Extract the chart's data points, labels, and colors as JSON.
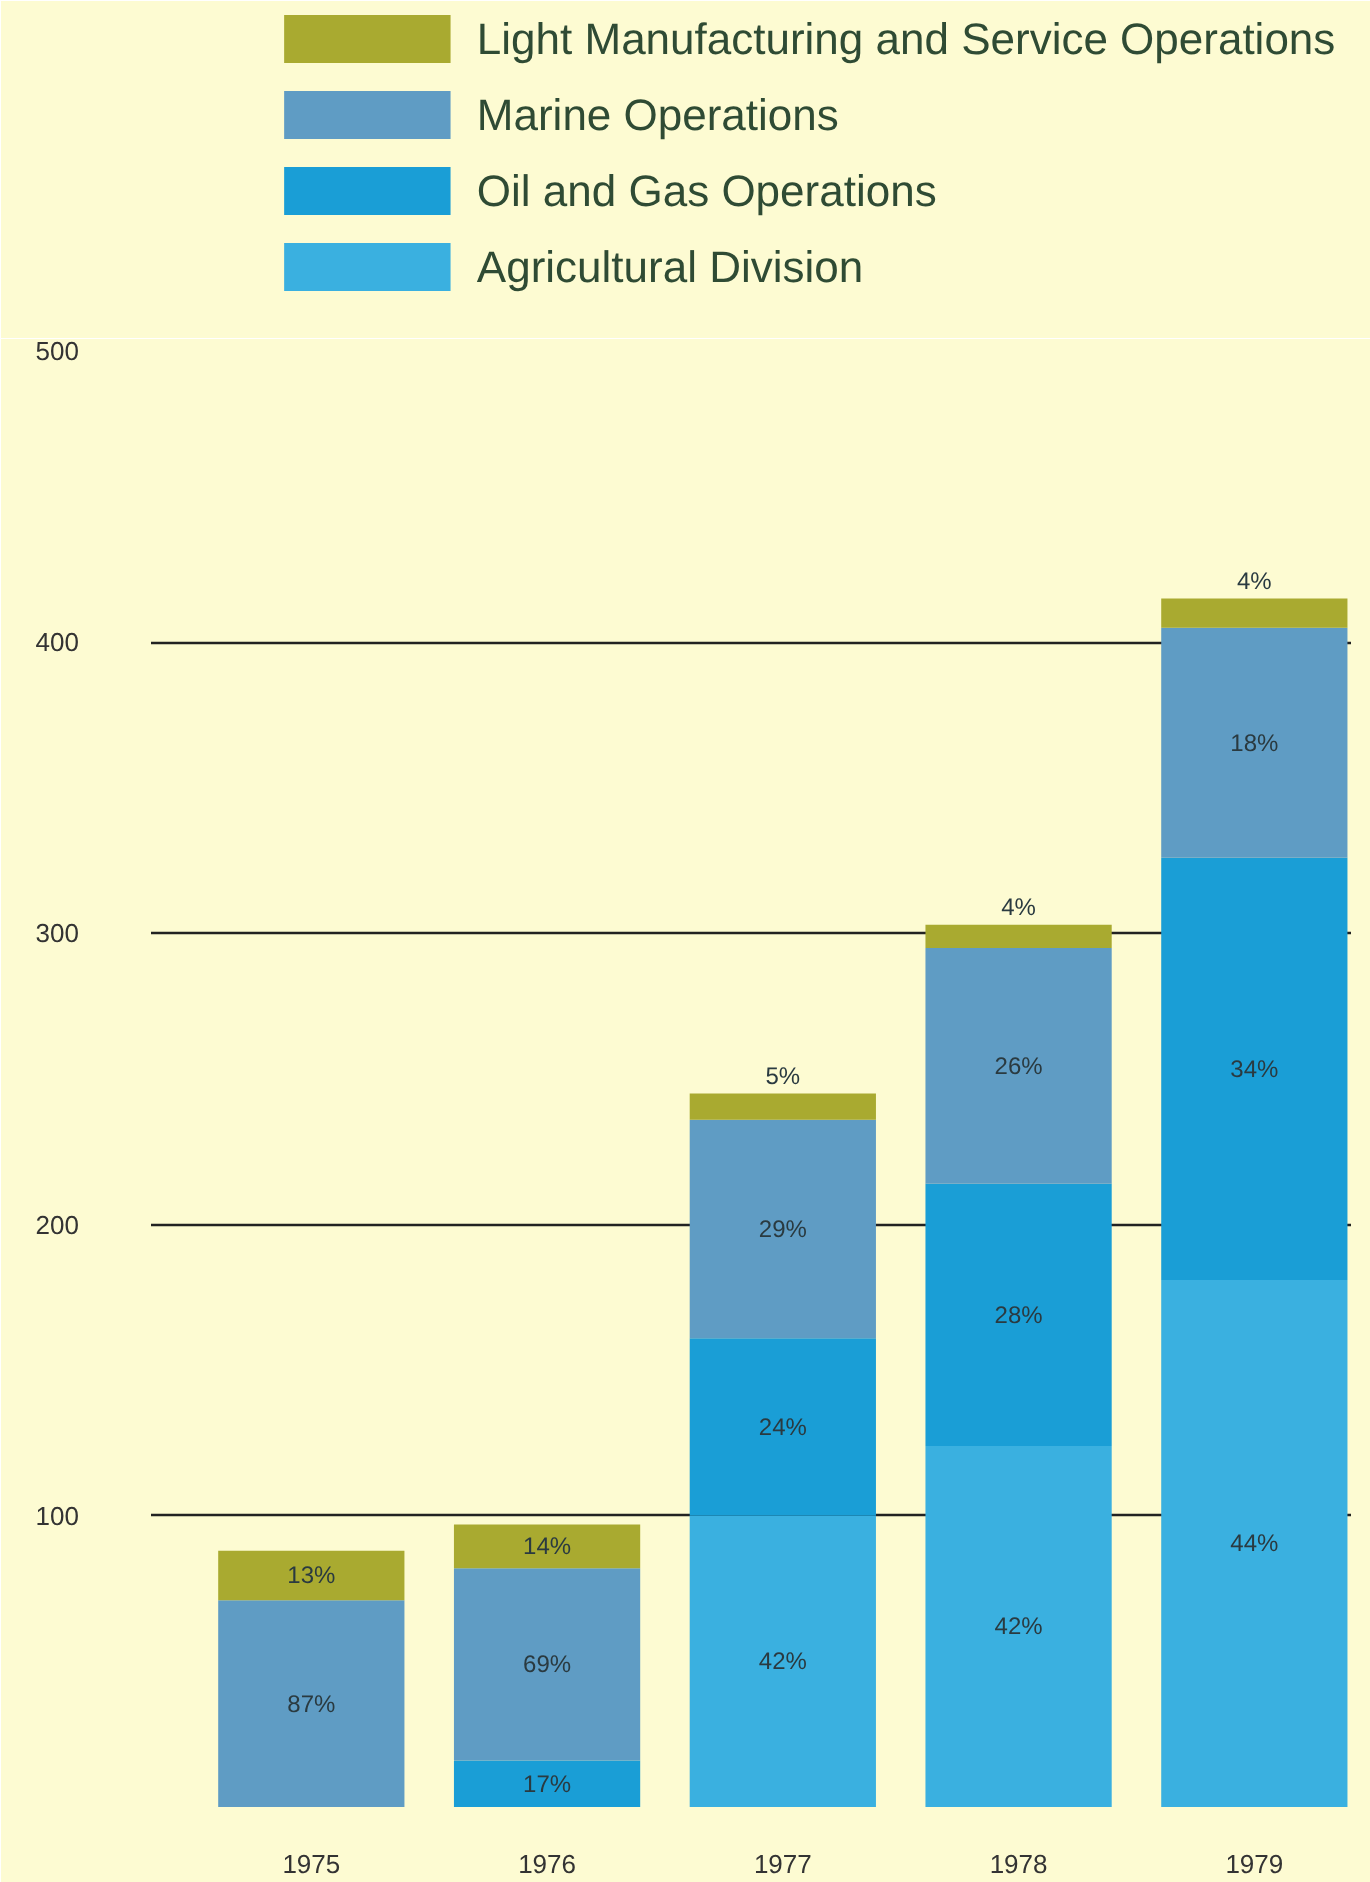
{
  "chart_data": {
    "type": "bar",
    "stacked": true,
    "categories": [
      "1975",
      "1976",
      "1977",
      "1978",
      "1979"
    ],
    "series": [
      {
        "name": "Agricultural Division",
        "color": "#3ab0e0",
        "values": [
          null,
          null,
          100,
          124,
          181
        ]
      },
      {
        "name": "Oil and Gas Operations",
        "color": "#1a9ed6",
        "values": [
          null,
          16,
          61,
          90,
          145
        ]
      },
      {
        "name": "Marine Operations",
        "color": "#5f9cc4",
        "values": [
          71,
          66,
          75,
          81,
          79
        ]
      },
      {
        "name": "Light Manufacturing and Service Operations",
        "color": "#a9aa30",
        "values": [
          17,
          15,
          9,
          8,
          10
        ]
      }
    ],
    "annotations": [
      "42%",
      "42%",
      "44%",
      "17%",
      "24%",
      "28%",
      "34%",
      "87%",
      "69%",
      "29%",
      "26%",
      "18%",
      "13%",
      "14%",
      "5%",
      "4%",
      "4%"
    ],
    "ylim": [
      0,
      500
    ],
    "yticks": [
      100,
      200,
      300,
      400,
      500
    ],
    "grid": "y",
    "legend": "top"
  }
}
